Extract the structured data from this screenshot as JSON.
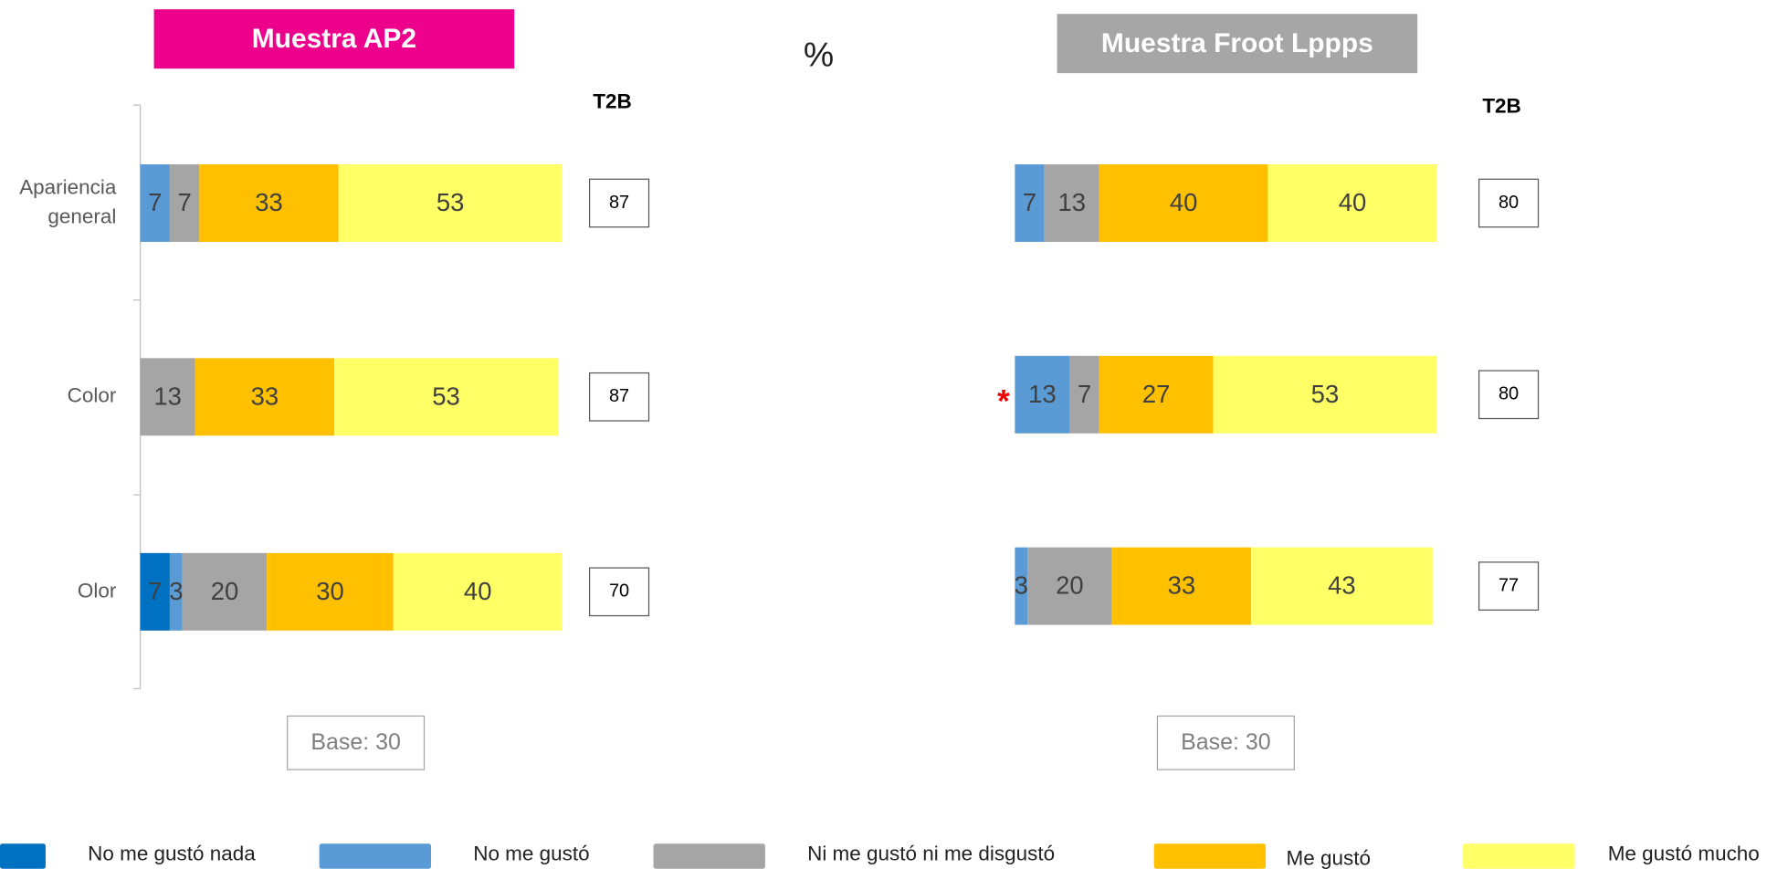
{
  "title": "%",
  "chart_data": [
    {
      "type": "bar",
      "orientation": "horizontal",
      "header": "Muestra AP2",
      "header_color": "#ec008c",
      "categories": [
        "Apariencia general",
        "Color",
        "Olor"
      ],
      "xlim": [
        0,
        100
      ],
      "series": [
        {
          "name": "No me gustó nada",
          "color": "#0070c0",
          "values": [
            0,
            0,
            7
          ]
        },
        {
          "name": "No me gustó",
          "color": "#5b9bd5",
          "values": [
            7,
            0,
            3
          ]
        },
        {
          "name": "Ni me gustó ni me disgustó",
          "color": "#a5a5a5",
          "values": [
            7,
            13,
            20
          ]
        },
        {
          "name": "Me gustó",
          "color": "#ffc000",
          "values": [
            33,
            33,
            30
          ]
        },
        {
          "name": "Me gustó mucho",
          "color": "#ffff66",
          "values": [
            53,
            53,
            40
          ]
        }
      ],
      "t2b_label": "T2B",
      "t2b": [
        87,
        87,
        70
      ],
      "base": "Base: 30"
    },
    {
      "type": "bar",
      "orientation": "horizontal",
      "header": "Muestra Froot Lppps",
      "header_color": "#a6a6a6",
      "xlim": [
        0,
        100
      ],
      "series": [
        {
          "name": "No me gustó nada",
          "color": "#0070c0",
          "values": [
            0,
            0,
            0
          ]
        },
        {
          "name": "No me gustó",
          "color": "#5b9bd5",
          "values": [
            7,
            13,
            3
          ]
        },
        {
          "name": "Ni me gustó ni me disgustó",
          "color": "#a5a5a5",
          "values": [
            13,
            7,
            20
          ]
        },
        {
          "name": "Me gustó",
          "color": "#ffc000",
          "values": [
            40,
            27,
            33
          ]
        },
        {
          "name": "Me gustó mucho",
          "color": "#ffff66",
          "values": [
            40,
            53,
            43
          ]
        }
      ],
      "t2b_label": "T2B",
      "t2b": [
        80,
        80,
        77
      ],
      "base": "Base: 30",
      "annotations": [
        {
          "text": "*",
          "row": 1
        }
      ]
    }
  ]
}
